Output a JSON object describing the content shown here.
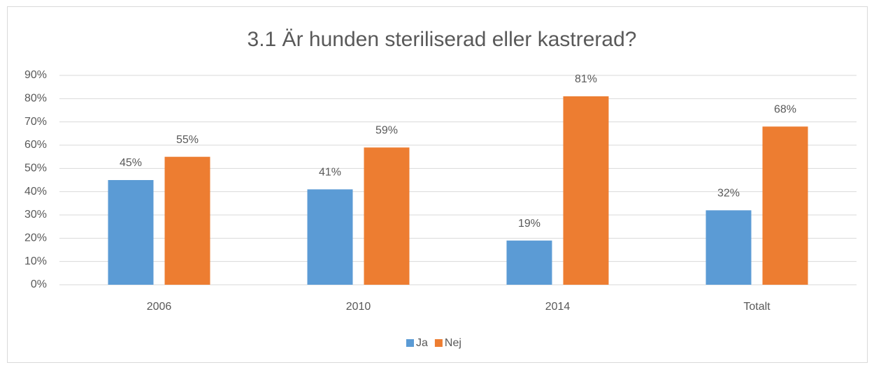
{
  "chart_data": {
    "type": "bar",
    "title": "3.1 Är hunden steriliserad eller kastrerad?",
    "categories": [
      "2006",
      "2010",
      "2014",
      "Totalt"
    ],
    "series": [
      {
        "name": "Ja",
        "color": "#5b9bd5",
        "values": [
          45,
          41,
          19,
          32
        ],
        "value_labels": [
          "45%",
          "41%",
          "19%",
          "32%"
        ]
      },
      {
        "name": "Nej",
        "color": "#ed7d31",
        "values": [
          55,
          59,
          81,
          68
        ],
        "value_labels": [
          "55%",
          "59%",
          "81%",
          "68%"
        ]
      }
    ],
    "ylim": [
      0,
      90
    ],
    "yticks": [
      {
        "value": 0,
        "label": "0%"
      },
      {
        "value": 10,
        "label": "10%"
      },
      {
        "value": 20,
        "label": "20%"
      },
      {
        "value": 30,
        "label": "30%"
      },
      {
        "value": 40,
        "label": "40%"
      },
      {
        "value": 50,
        "label": "50%"
      },
      {
        "value": 60,
        "label": "60%"
      },
      {
        "value": 70,
        "label": "70%"
      },
      {
        "value": 80,
        "label": "80%"
      },
      {
        "value": 90,
        "label": "90%"
      }
    ],
    "grid": true,
    "legend": "bottom"
  }
}
